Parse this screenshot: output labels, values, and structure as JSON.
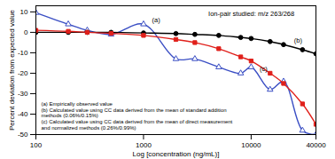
{
  "chart_data": {
    "type": "line",
    "x_label": "Log [concentration (ng/mL)]",
    "y_label": "Percent deviation from expected value",
    "log": "x",
    "grid": false,
    "legend": "lower left",
    "xlim": [
      100,
      40000
    ],
    "xticks": [
      100,
      1000,
      10000,
      40000
    ],
    "ylim": [
      -50,
      13
    ],
    "yticks": [
      10,
      0,
      -10,
      -20,
      -30,
      -40,
      -50
    ],
    "x": [
      100,
      200,
      300,
      500,
      1000,
      2000,
      3000,
      5000,
      8000,
      10000,
      15000,
      20000,
      30000,
      40000
    ],
    "series": [
      {
        "name": "(a) Empirically observed value",
        "color": "#3b4fc4",
        "marker": "triangle-open",
        "line_style": "solid",
        "values": [
          9.6,
          4,
          1,
          -1,
          4,
          -13,
          -13,
          -17,
          -20,
          -17,
          -28,
          -24,
          -48,
          -50
        ]
      },
      {
        "name": "(b) Calculated value using CC data derived from the mean of standard addition methods (0.06%/0.15%)",
        "color": "#000000",
        "marker": "circle",
        "line_style": "solid",
        "values": [
          0,
          0,
          0,
          0,
          -0.3,
          -0.6,
          -1,
          -1.5,
          -2.5,
          -3,
          -4.5,
          -6,
          -8.5,
          -10.5
        ]
      },
      {
        "name": "(c) Calculated value using CC data derived from the mean of direct measurement and normalized methods (0.26%/0.99%)",
        "color": "#e0201b",
        "marker": "square",
        "line_style": "solid",
        "values": [
          1,
          0.5,
          0,
          -0.5,
          -1.5,
          -3.5,
          -5,
          -8,
          -12,
          -14,
          -20,
          -25,
          -35,
          -45
        ]
      }
    ],
    "annotations": [
      {
        "text": "Ion-pair studied: m/z 263/268",
        "x": 4000,
        "y": 9
      },
      {
        "text": "(a)",
        "x": 1200,
        "y": 6
      },
      {
        "text": "(b)",
        "x": 25000,
        "y": -4
      },
      {
        "text": "(c)",
        "x": 12000,
        "y": -18
      }
    ]
  }
}
